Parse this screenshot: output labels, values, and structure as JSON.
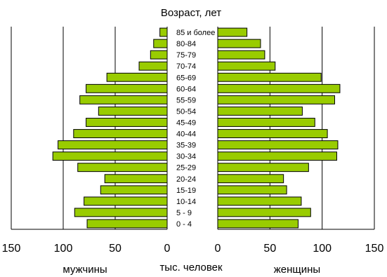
{
  "chart_data": {
    "type": "bar",
    "orientation": "horizontal",
    "title": "Возраст, лет",
    "categories": [
      "85 и более",
      "80-84",
      "75-79",
      "70-74",
      "65-69",
      "60-64",
      "55-59",
      "50-54",
      "45-49",
      "40-44",
      "35-39",
      "30-34",
      "25-29",
      "20-24",
      "15-19",
      "10-14",
      "5 - 9",
      "0 - 4"
    ],
    "series": [
      {
        "name": "мужчины",
        "values": [
          7,
          13,
          16,
          27,
          58,
          78,
          84,
          66,
          78,
          90,
          105,
          110,
          86,
          60,
          64,
          80,
          89,
          77
        ]
      },
      {
        "name": "женщины",
        "values": [
          28,
          41,
          45,
          55,
          99,
          117,
          112,
          81,
          93,
          105,
          115,
          114,
          87,
          63,
          66,
          80,
          89,
          77
        ]
      }
    ],
    "left_axis": {
      "ticks": [
        "150",
        "100",
        "50",
        "0"
      ],
      "range": [
        0,
        150
      ]
    },
    "right_axis": {
      "ticks": [
        "0",
        "50",
        "100",
        "150"
      ],
      "range": [
        0,
        150
      ]
    },
    "xlabel": "тыс. человек",
    "left_label": "мужчины",
    "right_label": "женщины",
    "grid": true,
    "colors": {
      "bar_fill": "#99cc00",
      "bar_stroke": "#000000",
      "grid": "#000000"
    }
  }
}
